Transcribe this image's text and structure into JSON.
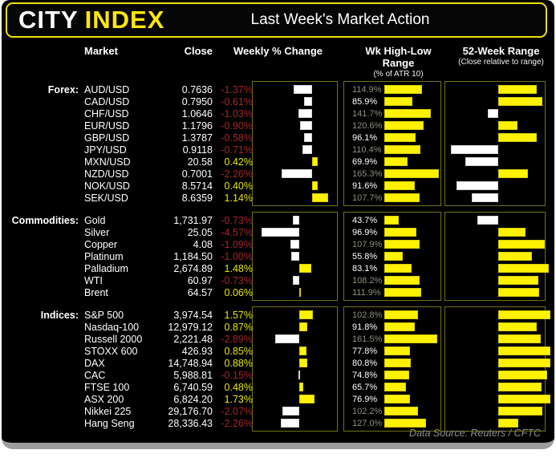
{
  "header": {
    "logo_part1": "CITY",
    "logo_part2": "INDEX",
    "title": "Last Week's Market Action"
  },
  "columns": {
    "market": "Market",
    "close": "Close",
    "weekly": "Weekly % Change",
    "hl": "Wk High-Low Range",
    "hl_sub": "(% of ATR 10)",
    "wk52": "52-Week Range",
    "wk52_sub": "(Close relative to range)"
  },
  "footer": {
    "source": "Data Source: Reuters / CFTC"
  },
  "colors": {
    "bar_yellow": "#fff200",
    "negative_red": "#a32424",
    "positive_yellow": "#e5e500",
    "box_border": "#72721a",
    "dim_label": "#8e8e80",
    "logo_yellow": "#ffe60a",
    "titlebar_border": "#efe000",
    "frame_grey": "#9c9c9c"
  },
  "chart_data": {
    "type": "table",
    "title": "Last Week's Market Action",
    "notes": "weekly_change_pct shown as diverging bar (white=negative, yellow=positive); hl_range_pct_of_atr10 shown as yellow bar; range_pos_pct_52w is close position within 52-week range (0=low, 50=midpoint, 100=high) shown as bar from midpoint",
    "groups": [
      {
        "label": "Forex:",
        "weekly_axis": {
          "min": -3.95,
          "max": 2.28
        },
        "rows": [
          {
            "market": "AUD/USD",
            "close": "0.7636",
            "change_pct": -1.37,
            "hl_pct": 114.9,
            "range_pos": 86
          },
          {
            "market": "CAD/USD",
            "close": "0.7950",
            "change_pct": -0.61,
            "hl_pct": 85.9,
            "range_pos": 92
          },
          {
            "market": "CHF/USD",
            "close": "1.0646",
            "change_pct": -1.03,
            "hl_pct": 141.7,
            "range_pos": 39
          },
          {
            "market": "EUR/USD",
            "close": "1.1796",
            "change_pct": -0.9,
            "hl_pct": 120.6,
            "range_pos": 68
          },
          {
            "market": "GBP/USD",
            "close": "1.3787",
            "change_pct": -0.58,
            "hl_pct": 96.1,
            "range_pos": 86
          },
          {
            "market": "JPY/USD",
            "close": "0.9118",
            "change_pct": -0.71,
            "hl_pct": 110.4,
            "range_pos": 0
          },
          {
            "market": "MXN/USD",
            "close": "20.58",
            "change_pct": 0.42,
            "hl_pct": 69.9,
            "range_pos": 15
          },
          {
            "market": "NZD/USD",
            "close": "0.7001",
            "change_pct": -2.26,
            "hl_pct": 165.3,
            "range_pos": 78
          },
          {
            "market": "NOK/USD",
            "close": "8.5714",
            "change_pct": 0.4,
            "hl_pct": 91.6,
            "range_pos": 6
          },
          {
            "market": "SEK/USD",
            "close": "8.6359",
            "change_pct": 1.14,
            "hl_pct": 107.7,
            "range_pos": 22
          }
        ]
      },
      {
        "label": "Commodities:",
        "weekly_axis": {
          "min": -4.95,
          "max": 5.35
        },
        "rows": [
          {
            "market": "Gold",
            "close": "1,731.97",
            "change_pct": -0.73,
            "hl_pct": 43.7,
            "range_pos": 28
          },
          {
            "market": "Silver",
            "close": "25.05",
            "change_pct": -4.57,
            "hl_pct": 96.9,
            "range_pos": 76
          },
          {
            "market": "Copper",
            "close": "4.08",
            "change_pct": -1.09,
            "hl_pct": 107.9,
            "range_pos": 94
          },
          {
            "market": "Platinum",
            "close": "1,184.50",
            "change_pct": -1.0,
            "hl_pct": 55.8,
            "range_pos": 82
          },
          {
            "market": "Palladium",
            "close": "2,674.89",
            "change_pct": 1.48,
            "hl_pct": 83.1,
            "range_pos": 98
          },
          {
            "market": "WTI",
            "close": "60.97",
            "change_pct": -0.73,
            "hl_pct": 108.2,
            "range_pos": 88
          },
          {
            "market": "Brent",
            "close": "64.57",
            "change_pct": 0.06,
            "hl_pct": 111.9,
            "range_pos": 89
          }
        ]
      },
      {
        "label": "Indices:",
        "weekly_axis": {
          "min": -4.9,
          "max": 5.2
        },
        "rows": [
          {
            "market": "S&P 500",
            "close": "3,974.54",
            "change_pct": 1.57,
            "hl_pct": 102.8,
            "range_pos": 99
          },
          {
            "market": "Nasdaq-100",
            "close": "12,979.12",
            "change_pct": 0.87,
            "hl_pct": 91.8,
            "range_pos": 86
          },
          {
            "market": "Russell 2000",
            "close": "2,221.48",
            "change_pct": -2.89,
            "hl_pct": 161.5,
            "range_pos": 90
          },
          {
            "market": "STOXX 600",
            "close": "426.93",
            "change_pct": 0.85,
            "hl_pct": 77.8,
            "range_pos": 99
          },
          {
            "market": "DAX",
            "close": "14,748.94",
            "change_pct": 0.88,
            "hl_pct": 80.8,
            "range_pos": 99
          },
          {
            "market": "CAC",
            "close": "5,988.81",
            "change_pct": -0.15,
            "hl_pct": 74.8,
            "range_pos": 96
          },
          {
            "market": "FTSE 100",
            "close": "6,740.59",
            "change_pct": 0.48,
            "hl_pct": 65.7,
            "range_pos": 91
          },
          {
            "market": "ASX 200",
            "close": "6,824.20",
            "change_pct": 1.73,
            "hl_pct": 76.9,
            "range_pos": 99
          },
          {
            "market": "Nikkei 225",
            "close": "29,176.70",
            "change_pct": -2.07,
            "hl_pct": 102.2,
            "range_pos": 92
          },
          {
            "market": "Hang Seng",
            "close": "28,336.43",
            "change_pct": -2.26,
            "hl_pct": 127.0,
            "range_pos": 69
          }
        ]
      }
    ]
  }
}
